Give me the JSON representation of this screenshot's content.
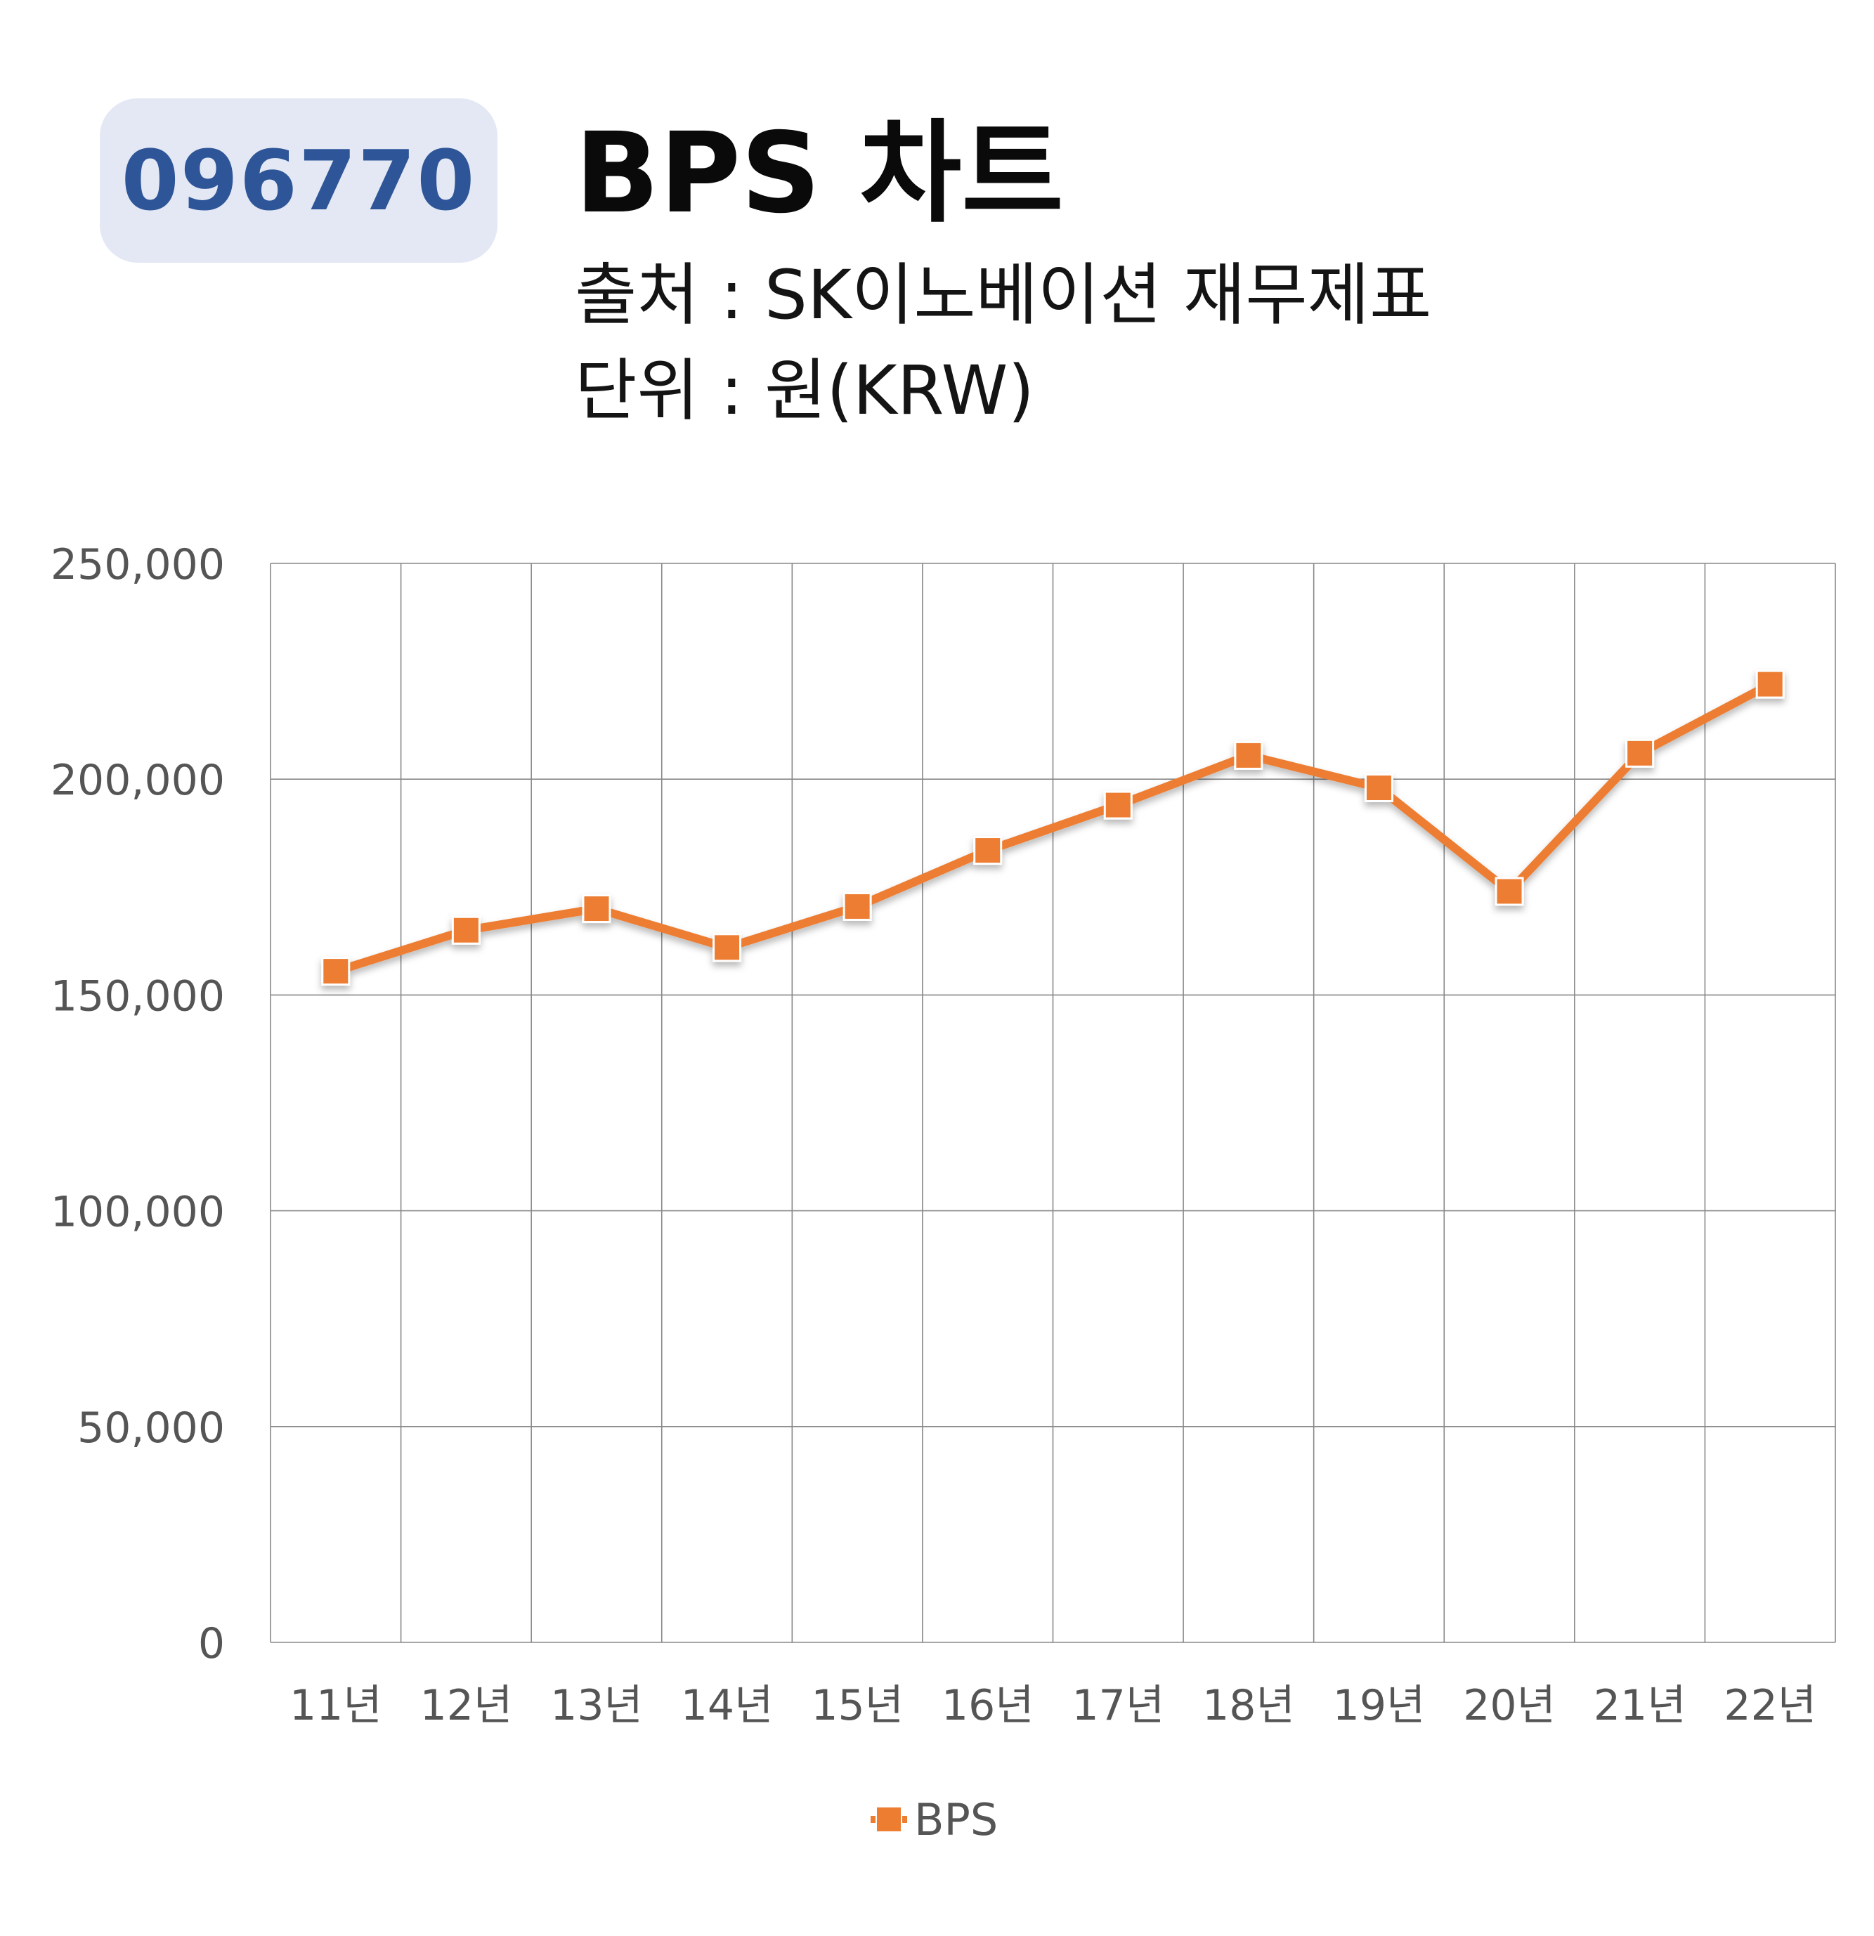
{
  "header": {
    "ticker": "096770",
    "title": "BPS 차트",
    "source": "출처 : SK이노베이션 재무제표",
    "unit": "단위 : 원(KRW)"
  },
  "colors": {
    "badge_bg": "#e3e8f4",
    "badge_text": "#2e5597",
    "series": "#ed7d31",
    "grid": "#888888"
  },
  "chart_data": {
    "type": "line",
    "categories": [
      "11년",
      "12년",
      "13년",
      "14년",
      "15년",
      "16년",
      "17년",
      "18년",
      "19년",
      "20년",
      "21년",
      "22년"
    ],
    "series": [
      {
        "name": "BPS",
        "values": [
          155500,
          165000,
          170000,
          161000,
          170500,
          183500,
          194000,
          205500,
          198000,
          174000,
          206000,
          222000
        ],
        "color": "#ed7d31",
        "marker": "square"
      }
    ],
    "ylim": [
      0,
      250000
    ],
    "yticks": [
      0,
      50000,
      100000,
      150000,
      200000,
      250000
    ],
    "ytick_labels": [
      "0",
      "50,000",
      "100,000",
      "150,000",
      "200,000",
      "250,000"
    ],
    "grid": true,
    "legend": "bottom"
  }
}
